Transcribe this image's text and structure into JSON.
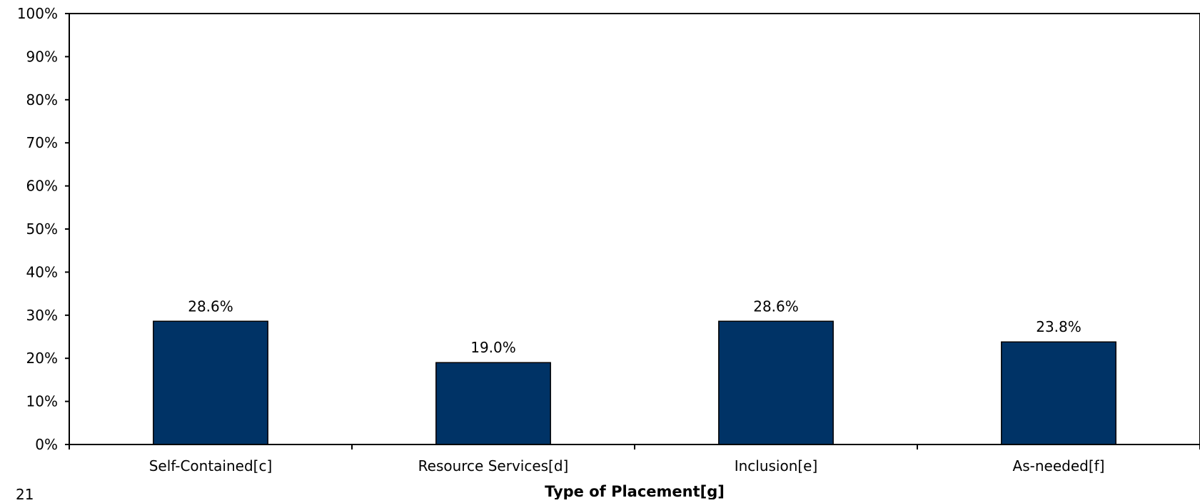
{
  "chart_data": {
    "type": "bar",
    "categories": [
      "Self-Contained[c]",
      "Resource Services[d]",
      "Inclusion[e]",
      "As-needed[f]"
    ],
    "values": [
      28.6,
      19.0,
      28.6,
      23.8
    ],
    "data_labels": [
      "28.6%",
      "19.0%",
      "28.6%",
      "23.8%"
    ],
    "xlabel": "Type of Placement[g]",
    "ylabel": "",
    "ylim": [
      0,
      100
    ],
    "ytick_step": 10,
    "ytick_suffix": "%",
    "grid": false,
    "legend": "none",
    "bar_color": "#003366"
  },
  "footer": {
    "page_number": "21"
  }
}
